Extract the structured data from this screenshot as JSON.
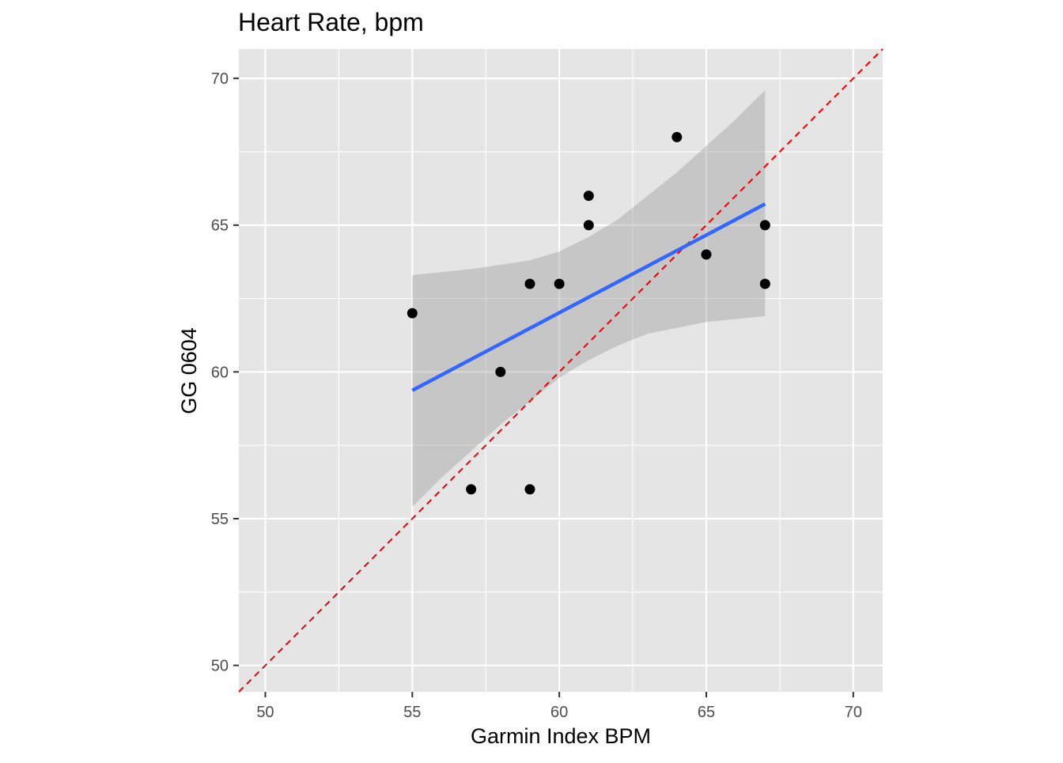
{
  "chart_data": {
    "type": "scatter",
    "title": "Heart Rate, bpm",
    "xlabel": "Garmin Index BPM",
    "ylabel": "GG 0604",
    "xlim": [
      49.1,
      71.0
    ],
    "ylim": [
      49.1,
      71.0
    ],
    "x_ticks": [
      50,
      55,
      60,
      65,
      70
    ],
    "y_ticks": [
      50,
      55,
      60,
      65,
      70
    ],
    "grid": true,
    "legend": "none",
    "points": [
      {
        "x": 55,
        "y": 62
      },
      {
        "x": 57,
        "y": 56
      },
      {
        "x": 58,
        "y": 60
      },
      {
        "x": 59,
        "y": 63
      },
      {
        "x": 59,
        "y": 56
      },
      {
        "x": 60,
        "y": 63
      },
      {
        "x": 61,
        "y": 66
      },
      {
        "x": 61,
        "y": 65
      },
      {
        "x": 64,
        "y": 68
      },
      {
        "x": 65,
        "y": 64
      },
      {
        "x": 67,
        "y": 65
      },
      {
        "x": 67,
        "y": 63
      }
    ],
    "regression": {
      "method": "lm",
      "x_range": [
        55,
        67
      ],
      "line": [
        {
          "x": 55,
          "y": 59.37
        },
        {
          "x": 67,
          "y": 65.72
        }
      ],
      "ci_upper": [
        {
          "x": 55,
          "y": 63.3
        },
        {
          "x": 57,
          "y": 63.5
        },
        {
          "x": 59,
          "y": 63.8
        },
        {
          "x": 60,
          "y": 64.1
        },
        {
          "x": 61,
          "y": 64.6
        },
        {
          "x": 62,
          "y": 65.2
        },
        {
          "x": 63,
          "y": 66.0
        },
        {
          "x": 64,
          "y": 66.8
        },
        {
          "x": 65,
          "y": 67.7
        },
        {
          "x": 66,
          "y": 68.6
        },
        {
          "x": 67,
          "y": 69.6
        }
      ],
      "ci_lower": [
        {
          "x": 55,
          "y": 55.4
        },
        {
          "x": 56,
          "y": 56.4
        },
        {
          "x": 57,
          "y": 57.3
        },
        {
          "x": 58,
          "y": 58.2
        },
        {
          "x": 59,
          "y": 59.0
        },
        {
          "x": 60,
          "y": 59.8
        },
        {
          "x": 61,
          "y": 60.4
        },
        {
          "x": 62,
          "y": 60.9
        },
        {
          "x": 63,
          "y": 61.3
        },
        {
          "x": 65,
          "y": 61.7
        },
        {
          "x": 67,
          "y": 61.9
        }
      ]
    },
    "reference_line": {
      "slope": 1,
      "intercept": 0,
      "style": "dashed"
    },
    "colors": {
      "panel": "#e5e5e5",
      "grid_major": "#ffffff",
      "points": "#000000",
      "regression_line": "#3366ff",
      "ci_band": "#999999",
      "reference_line": "#ee0000"
    }
  }
}
